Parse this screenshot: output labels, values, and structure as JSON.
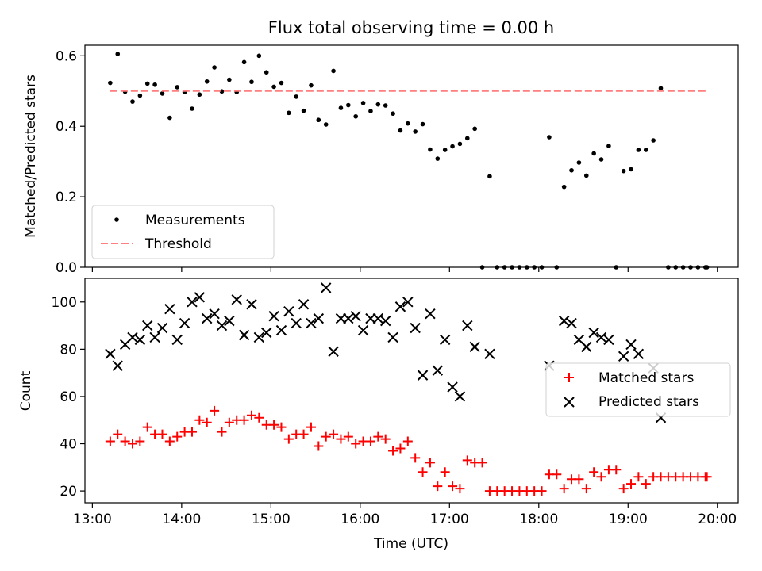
{
  "chart_data": [
    {
      "type": "scatter",
      "title": "Flux total observing time = 0.00 h",
      "xlabel": "",
      "ylabel": "Matched/Predicted stars",
      "xlim": [
        "12:55",
        "20:14"
      ],
      "ylim": [
        0,
        0.63
      ],
      "xticks": [
        "13:00",
        "14:00",
        "15:00",
        "16:00",
        "17:00",
        "18:00",
        "19:00",
        "20:00"
      ],
      "yticks": [
        "0.0",
        "0.2",
        "0.4",
        "0.6"
      ],
      "legend_position": "lower-left",
      "series": [
        {
          "name": "Measurements",
          "color": "#000000",
          "marker": "dot",
          "points": [
            [
              "13:12",
              0.523
            ],
            [
              "13:17",
              0.605
            ],
            [
              "13:22",
              0.498
            ],
            [
              "13:27",
              0.47
            ],
            [
              "13:32",
              0.487
            ],
            [
              "13:37",
              0.521
            ],
            [
              "13:42",
              0.518
            ],
            [
              "13:47",
              0.493
            ],
            [
              "13:52",
              0.424
            ],
            [
              "13:57",
              0.511
            ],
            [
              "14:02",
              0.497
            ],
            [
              "14:07",
              0.45
            ],
            [
              "14:12",
              0.49
            ],
            [
              "14:17",
              0.527
            ],
            [
              "14:22",
              0.567
            ],
            [
              "14:27",
              0.499
            ],
            [
              "14:32",
              0.532
            ],
            [
              "14:37",
              0.497
            ],
            [
              "14:42",
              0.582
            ],
            [
              "14:47",
              0.526
            ],
            [
              "14:52",
              0.6
            ],
            [
              "14:57",
              0.553
            ],
            [
              "15:02",
              0.512
            ],
            [
              "15:07",
              0.523
            ],
            [
              "15:12",
              0.438
            ],
            [
              "15:17",
              0.484
            ],
            [
              "15:22",
              0.444
            ],
            [
              "15:27",
              0.516
            ],
            [
              "15:32",
              0.418
            ],
            [
              "15:37",
              0.405
            ],
            [
              "15:42",
              0.557
            ],
            [
              "15:47",
              0.452
            ],
            [
              "15:52",
              0.46
            ],
            [
              "15:57",
              0.428
            ],
            [
              "16:02",
              0.466
            ],
            [
              "16:07",
              0.443
            ],
            [
              "16:12",
              0.462
            ],
            [
              "16:17",
              0.459
            ],
            [
              "16:22",
              0.436
            ],
            [
              "16:27",
              0.388
            ],
            [
              "16:32",
              0.408
            ],
            [
              "16:37",
              0.385
            ],
            [
              "16:42",
              0.406
            ],
            [
              "16:47",
              0.334
            ],
            [
              "16:52",
              0.308
            ],
            [
              "16:57",
              0.333
            ],
            [
              "17:02",
              0.343
            ],
            [
              "17:07",
              0.35
            ],
            [
              "17:12",
              0.366
            ],
            [
              "17:17",
              0.393
            ],
            [
              "17:22",
              0.0
            ],
            [
              "17:27",
              0.258
            ],
            [
              "17:32",
              0.0
            ],
            [
              "17:37",
              0.0
            ],
            [
              "17:42",
              0.0
            ],
            [
              "17:47",
              0.0
            ],
            [
              "17:52",
              0.0
            ],
            [
              "17:57",
              0.0
            ],
            [
              "18:02",
              0.0
            ],
            [
              "18:07",
              0.369
            ],
            [
              "18:12",
              0.0
            ],
            [
              "18:17",
              0.228
            ],
            [
              "18:22",
              0.275
            ],
            [
              "18:27",
              0.297
            ],
            [
              "18:32",
              0.26
            ],
            [
              "18:37",
              0.323
            ],
            [
              "18:42",
              0.306
            ],
            [
              "18:47",
              0.344
            ],
            [
              "18:52",
              0.0
            ],
            [
              "18:57",
              0.273
            ],
            [
              "19:02",
              0.278
            ],
            [
              "19:07",
              0.333
            ],
            [
              "19:12",
              0.333
            ],
            [
              "19:17",
              0.36
            ],
            [
              "19:22",
              0.508
            ],
            [
              "19:27",
              0.0
            ],
            [
              "19:32",
              0.0
            ],
            [
              "19:37",
              0.0
            ],
            [
              "19:42",
              0.0
            ],
            [
              "19:47",
              0.0
            ],
            [
              "19:52",
              0.0
            ],
            [
              "19:53",
              0.0
            ]
          ]
        },
        {
          "name": "Threshold",
          "color": "#ff7f7f",
          "marker": "dashed-line",
          "points": [
            [
              "13:12",
              0.5
            ],
            [
              "19:53",
              0.5
            ]
          ]
        }
      ]
    },
    {
      "type": "scatter",
      "title": "",
      "xlabel": "Time (UTC)",
      "ylabel": "Count",
      "xlim": [
        "12:55",
        "20:14"
      ],
      "ylim": [
        15,
        110
      ],
      "xticks": [
        "13:00",
        "14:00",
        "15:00",
        "16:00",
        "17:00",
        "18:00",
        "19:00",
        "20:00"
      ],
      "yticks": [
        "20",
        "40",
        "60",
        "80",
        "100"
      ],
      "legend_position": "center-right",
      "series": [
        {
          "name": "Matched stars",
          "color": "#ff0000",
          "marker": "plus",
          "points": [
            [
              "13:12",
              41
            ],
            [
              "13:17",
              44
            ],
            [
              "13:22",
              41
            ],
            [
              "13:27",
              40
            ],
            [
              "13:32",
              41
            ],
            [
              "13:37",
              47
            ],
            [
              "13:42",
              44
            ],
            [
              "13:47",
              44
            ],
            [
              "13:52",
              41
            ],
            [
              "13:57",
              43
            ],
            [
              "14:02",
              45
            ],
            [
              "14:07",
              45
            ],
            [
              "14:12",
              50
            ],
            [
              "14:17",
              49
            ],
            [
              "14:22",
              54
            ],
            [
              "14:27",
              45
            ],
            [
              "14:32",
              49
            ],
            [
              "14:37",
              50
            ],
            [
              "14:42",
              50
            ],
            [
              "14:47",
              52
            ],
            [
              "14:52",
              51
            ],
            [
              "14:57",
              48
            ],
            [
              "15:02",
              48
            ],
            [
              "15:07",
              47
            ],
            [
              "15:12",
              42
            ],
            [
              "15:17",
              44
            ],
            [
              "15:22",
              44
            ],
            [
              "15:27",
              47
            ],
            [
              "15:32",
              39
            ],
            [
              "15:37",
              43
            ],
            [
              "15:42",
              44
            ],
            [
              "15:47",
              42
            ],
            [
              "15:52",
              43
            ],
            [
              "15:57",
              40
            ],
            [
              "16:02",
              41
            ],
            [
              "16:07",
              41
            ],
            [
              "16:12",
              43
            ],
            [
              "16:17",
              42
            ],
            [
              "16:22",
              37
            ],
            [
              "16:27",
              38
            ],
            [
              "16:32",
              41
            ],
            [
              "16:37",
              34
            ],
            [
              "16:42",
              28
            ],
            [
              "16:47",
              32
            ],
            [
              "16:52",
              22
            ],
            [
              "16:57",
              28
            ],
            [
              "17:02",
              22
            ],
            [
              "17:07",
              21
            ],
            [
              "17:12",
              33
            ],
            [
              "17:17",
              32
            ],
            [
              "17:22",
              32
            ],
            [
              "17:27",
              20
            ],
            [
              "17:32",
              20
            ],
            [
              "17:37",
              20
            ],
            [
              "17:42",
              20
            ],
            [
              "17:47",
              20
            ],
            [
              "17:52",
              20
            ],
            [
              "17:57",
              20
            ],
            [
              "18:02",
              20
            ],
            [
              "18:07",
              27
            ],
            [
              "18:12",
              27
            ],
            [
              "18:17",
              21
            ],
            [
              "18:22",
              25
            ],
            [
              "18:27",
              25
            ],
            [
              "18:32",
              21
            ],
            [
              "18:37",
              28
            ],
            [
              "18:42",
              26
            ],
            [
              "18:47",
              29
            ],
            [
              "18:52",
              29
            ],
            [
              "18:57",
              21
            ],
            [
              "19:02",
              23
            ],
            [
              "19:07",
              26
            ],
            [
              "19:12",
              23
            ],
            [
              "19:17",
              26
            ],
            [
              "19:22",
              26
            ],
            [
              "19:27",
              26
            ],
            [
              "19:32",
              26
            ],
            [
              "19:37",
              26
            ],
            [
              "19:42",
              26
            ],
            [
              "19:47",
              26
            ],
            [
              "19:52",
              26
            ],
            [
              "19:53",
              26
            ]
          ]
        },
        {
          "name": "Predicted stars",
          "color": "#000000",
          "marker": "x",
          "points": [
            [
              "13:12",
              78
            ],
            [
              "13:17",
              73
            ],
            [
              "13:22",
              82
            ],
            [
              "13:27",
              85
            ],
            [
              "13:32",
              84
            ],
            [
              "13:37",
              90
            ],
            [
              "13:42",
              85
            ],
            [
              "13:47",
              89
            ],
            [
              "13:52",
              97
            ],
            [
              "13:57",
              84
            ],
            [
              "14:02",
              91
            ],
            [
              "14:07",
              100
            ],
            [
              "14:12",
              102
            ],
            [
              "14:17",
              93
            ],
            [
              "14:22",
              95
            ],
            [
              "14:27",
              90
            ],
            [
              "14:32",
              92
            ],
            [
              "14:37",
              101
            ],
            [
              "14:42",
              86
            ],
            [
              "14:47",
              99
            ],
            [
              "14:52",
              85
            ],
            [
              "14:57",
              87
            ],
            [
              "15:02",
              94
            ],
            [
              "15:07",
              88
            ],
            [
              "15:12",
              96
            ],
            [
              "15:17",
              91
            ],
            [
              "15:22",
              99
            ],
            [
              "15:27",
              91
            ],
            [
              "15:32",
              93
            ],
            [
              "15:37",
              106
            ],
            [
              "15:42",
              79
            ],
            [
              "15:47",
              93
            ],
            [
              "15:52",
              93
            ],
            [
              "15:57",
              94
            ],
            [
              "16:02",
              88
            ],
            [
              "16:07",
              93
            ],
            [
              "16:12",
              93
            ],
            [
              "16:17",
              92
            ],
            [
              "16:22",
              85
            ],
            [
              "16:27",
              98
            ],
            [
              "16:32",
              100
            ],
            [
              "16:37",
              89
            ],
            [
              "16:42",
              69
            ],
            [
              "16:47",
              95
            ],
            [
              "16:52",
              71
            ],
            [
              "16:57",
              84
            ],
            [
              "17:02",
              64
            ],
            [
              "17:07",
              60
            ],
            [
              "17:12",
              90
            ],
            [
              "17:17",
              81
            ],
            [
              "17:27",
              78
            ],
            [
              "18:07",
              73
            ],
            [
              "18:17",
              92
            ],
            [
              "18:22",
              91
            ],
            [
              "18:27",
              84
            ],
            [
              "18:32",
              81
            ],
            [
              "18:37",
              87
            ],
            [
              "18:42",
              85
            ],
            [
              "18:47",
              84
            ],
            [
              "18:57",
              77
            ],
            [
              "19:02",
              82
            ],
            [
              "19:07",
              78
            ],
            [
              "19:17",
              72
            ],
            [
              "19:22",
              51
            ]
          ]
        }
      ]
    }
  ]
}
